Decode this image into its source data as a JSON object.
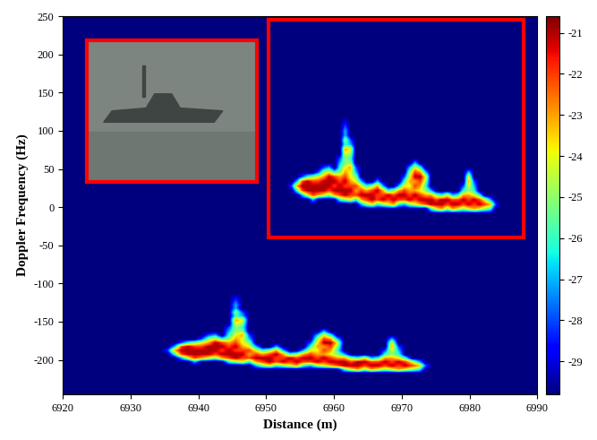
{
  "chart_data": {
    "type": "heatmap",
    "x_label": "Distance (m)",
    "y_label": "Doppler Frequency (Hz)",
    "xlim": [
      6920,
      6990
    ],
    "xticks": [
      6920,
      6930,
      6940,
      6950,
      6960,
      6970,
      6980,
      6990
    ],
    "ylim": [
      -245,
      250
    ],
    "yticks": [
      -200,
      -150,
      -100,
      -50,
      0,
      50,
      100,
      150,
      200,
      250
    ],
    "colorbar": {
      "lim": [
        -29.8,
        -20.6
      ],
      "ticks": [
        -21,
        -22,
        -23,
        -24,
        -25,
        -26,
        -27,
        -28,
        -29
      ]
    },
    "columns": [
      {
        "x": 6935,
        "y": [
          -190
        ],
        "values": [
          -28
        ]
      },
      {
        "x": 6936,
        "y": [
          -195,
          -190,
          -185
        ],
        "values": [
          -26,
          -23,
          -27
        ]
      },
      {
        "x": 6937,
        "y": [
          -200,
          -195,
          -190,
          -185,
          -180
        ],
        "values": [
          -27,
          -22,
          -21,
          -22,
          -28
        ]
      },
      {
        "x": 6938,
        "y": [
          -200,
          -195,
          -190,
          -185,
          -180
        ],
        "values": [
          -24,
          -21,
          -21,
          -21,
          -26
        ]
      },
      {
        "x": 6939,
        "y": [
          -205,
          -200,
          -195,
          -190,
          -185,
          -180
        ],
        "values": [
          -27,
          -22,
          -21,
          -21,
          -22,
          -25
        ]
      },
      {
        "x": 6940,
        "y": [
          -200,
          -195,
          -190,
          -185,
          -180,
          -175
        ],
        "values": [
          -23,
          -21,
          -21,
          -22,
          -24,
          -28
        ]
      },
      {
        "x": 6941,
        "y": [
          -200,
          -195,
          -190,
          -185,
          -180,
          -175,
          -170
        ],
        "values": [
          -24,
          -21,
          -21,
          -21,
          -23,
          -25,
          -28
        ]
      },
      {
        "x": 6942,
        "y": [
          -200,
          -195,
          -190,
          -185,
          -180,
          -175,
          -170
        ],
        "values": [
          -25,
          -22,
          -21,
          -21,
          -21,
          -24,
          -27
        ]
      },
      {
        "x": 6943,
        "y": [
          -200,
          -195,
          -190,
          -185,
          -180,
          -175
        ],
        "values": [
          -23,
          -21,
          -22,
          -21,
          -22,
          -26
        ]
      },
      {
        "x": 6944,
        "y": [
          -205,
          -200,
          -195,
          -190,
          -185,
          -180,
          -175,
          -170,
          -165,
          -160
        ],
        "values": [
          -26,
          -22,
          -21,
          -21,
          -22,
          -23,
          -25,
          -26,
          -27,
          -28
        ]
      },
      {
        "x": 6945,
        "y": [
          -205,
          -200,
          -195,
          -190,
          -185,
          -180,
          -175,
          -170,
          -165,
          -160,
          -155,
          -150,
          -145,
          -140,
          -135,
          -130,
          -125,
          -120
        ],
        "values": [
          -25,
          -21,
          -21,
          -22,
          -21,
          -22,
          -23,
          -24,
          -25,
          -25,
          -24,
          -23,
          -26,
          -25,
          -27,
          -27,
          -28,
          -29
        ]
      },
      {
        "x": 6946,
        "y": [
          -205,
          -200,
          -195,
          -190,
          -185,
          -180,
          -175,
          -170,
          -165,
          -160,
          -155,
          -150,
          -145,
          -140
        ],
        "values": [
          -24,
          -22,
          -21,
          -22,
          -23,
          -24,
          -24,
          -23,
          -25,
          -26,
          -25,
          -24,
          -27,
          -28
        ]
      },
      {
        "x": 6947,
        "y": [
          -205,
          -200,
          -195,
          -190,
          -185,
          -180,
          -175,
          -170
        ],
        "values": [
          -26,
          -22,
          -23,
          -22,
          -24,
          -25,
          -27,
          -28
        ]
      },
      {
        "x": 6948,
        "y": [
          -210,
          -205,
          -200,
          -195,
          -190,
          -185
        ],
        "values": [
          -27,
          -23,
          -21,
          -22,
          -24,
          -27
        ]
      },
      {
        "x": 6949,
        "y": [
          -210,
          -205,
          -200,
          -195,
          -190
        ],
        "values": [
          -25,
          -22,
          -21,
          -23,
          -26
        ]
      },
      {
        "x": 6950,
        "y": [
          -210,
          -205,
          -200,
          -195,
          -190
        ],
        "values": [
          -24,
          -21,
          -21,
          -22,
          -25
        ]
      },
      {
        "x": 6951,
        "y": [
          -210,
          -205,
          -200,
          -195,
          -190,
          -185
        ],
        "values": [
          -26,
          -22,
          -22,
          -21,
          -23,
          -27
        ]
      },
      {
        "x": 6952,
        "y": [
          -210,
          -205,
          -200,
          -195,
          -190
        ],
        "values": [
          -25,
          -21,
          -22,
          -23,
          -27
        ]
      },
      {
        "x": 6953,
        "y": [
          -210,
          -205,
          -200,
          -195
        ],
        "values": [
          -24,
          -22,
          -21,
          -26
        ]
      },
      {
        "x": 6954,
        "y": [
          -210,
          -205,
          -200,
          -195
        ],
        "values": [
          -23,
          -21,
          -22,
          -25
        ]
      },
      {
        "x": 6955,
        "y": [
          -210,
          -205,
          -200,
          -195,
          -190
        ],
        "values": [
          -26,
          -22,
          -21,
          -23,
          -27
        ]
      },
      {
        "x": 6956,
        "y": [
          -210,
          -205,
          -200,
          -195,
          -190,
          -185,
          -180
        ],
        "values": [
          -27,
          -22,
          -21,
          -22,
          -24,
          -26,
          -28
        ]
      },
      {
        "x": 6957,
        "y": [
          -210,
          -205,
          -200,
          -195,
          -190,
          -185,
          -180,
          -175,
          -170
        ],
        "values": [
          -25,
          -21,
          -22,
          -23,
          -24,
          -23,
          -24,
          -25,
          -27
        ]
      },
      {
        "x": 6958,
        "y": [
          -210,
          -205,
          -200,
          -195,
          -190,
          -185,
          -180,
          -175,
          -170,
          -165
        ],
        "values": [
          -24,
          -22,
          -21,
          -23,
          -22,
          -23,
          -21,
          -22,
          -24,
          -27
        ]
      },
      {
        "x": 6959,
        "y": [
          -210,
          -205,
          -200,
          -195,
          -190,
          -185,
          -180,
          -175,
          -170
        ],
        "values": [
          -23,
          -21,
          -22,
          -24,
          -23,
          -22,
          -21,
          -23,
          -26
        ]
      },
      {
        "x": 6960,
        "y": [
          -210,
          -205,
          -200,
          -195,
          -190,
          -185,
          -180,
          -175
        ],
        "values": [
          -22,
          -21,
          -23,
          -25,
          -26,
          -25,
          -24,
          -27
        ]
      },
      {
        "x": 6961,
        "y": [
          -215,
          -210,
          -205,
          -200,
          -195
        ],
        "values": [
          -26,
          -21,
          -21,
          -23,
          -27
        ]
      },
      {
        "x": 6962,
        "y": [
          -215,
          -210,
          -205,
          -200
        ],
        "values": [
          -24,
          -21,
          -22,
          -25
        ]
      },
      {
        "x": 6963,
        "y": [
          -215,
          -210,
          -205,
          -200
        ],
        "values": [
          -23,
          -21,
          -21,
          -26
        ]
      },
      {
        "x": 6964,
        "y": [
          -215,
          -210,
          -205,
          -200
        ],
        "values": [
          -25,
          -22,
          -21,
          -24
        ]
      },
      {
        "x": 6965,
        "y": [
          -215,
          -210,
          -205,
          -200
        ],
        "values": [
          -23,
          -21,
          -22,
          -27
        ]
      },
      {
        "x": 6966,
        "y": [
          -215,
          -210,
          -205,
          -200
        ],
        "values": [
          -24,
          -21,
          -22,
          -26
        ]
      },
      {
        "x": 6967,
        "y": [
          -215,
          -210,
          -205,
          -200,
          -195,
          -190
        ],
        "values": [
          -25,
          -22,
          -21,
          -23,
          -26,
          -28
        ]
      },
      {
        "x": 6968,
        "y": [
          -215,
          -210,
          -205,
          -200,
          -195,
          -190,
          -185,
          -180,
          -175
        ],
        "values": [
          -24,
          -21,
          -22,
          -23,
          -25,
          -24,
          -23,
          -24,
          -27
        ]
      },
      {
        "x": 6969,
        "y": [
          -215,
          -210,
          -205,
          -200,
          -195,
          -190,
          -185
        ],
        "values": [
          -23,
          -22,
          -21,
          -24,
          -26,
          -27,
          -28
        ]
      },
      {
        "x": 6970,
        "y": [
          -215,
          -210,
          -205,
          -200
        ],
        "values": [
          -24,
          -21,
          -22,
          -26
        ]
      },
      {
        "x": 6971,
        "y": [
          -215,
          -210,
          -205
        ],
        "values": [
          -25,
          -22,
          -24
        ]
      },
      {
        "x": 6972,
        "y": [
          -215,
          -210,
          -205
        ],
        "values": [
          -26,
          -23,
          -27
        ]
      },
      {
        "x": 6973,
        "y": [
          -210
        ],
        "values": [
          -28
        ]
      }
    ]
  }
}
